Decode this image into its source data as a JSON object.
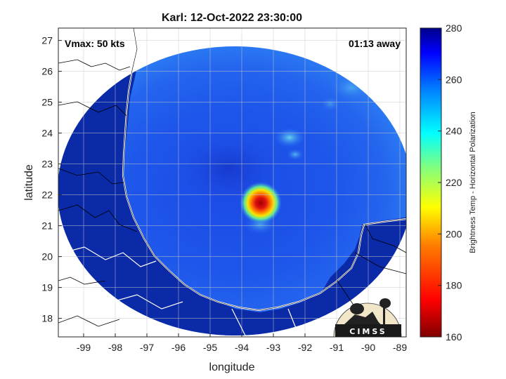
{
  "title": "Karl: 12-Oct-2022 23:30:00",
  "annotations": {
    "vmax": "Vmax: 50 kts",
    "time_away": "01:13 away"
  },
  "axes": {
    "xlabel": "longitude",
    "ylabel": "latitude",
    "xlim": [
      -99.8,
      -88.8
    ],
    "ylim": [
      17.4,
      27.4
    ],
    "xticks": [
      -99,
      -98,
      -97,
      -96,
      -95,
      -94,
      -93,
      -92,
      -91,
      -90,
      -89
    ],
    "yticks": [
      18,
      19,
      20,
      21,
      22,
      23,
      24,
      25,
      26,
      27
    ],
    "grid": true
  },
  "colorbar": {
    "label": "Brightness Temp - Horizontal Polarization",
    "range": [
      160,
      280
    ],
    "ticks": [
      160,
      180,
      200,
      220,
      240,
      260,
      280
    ],
    "colormap": "jet"
  },
  "map": {
    "swath_center": [
      -94.3,
      22.2
    ],
    "storm_center": [
      -93.5,
      21.7
    ],
    "storm_min_tb": 170,
    "background_tb": 262
  },
  "logo": {
    "text": "CIMSS"
  },
  "colors": {
    "background_blue": "#1a4fe0",
    "land_blue": "#0a1f9a",
    "storm_core": "#b00000"
  }
}
